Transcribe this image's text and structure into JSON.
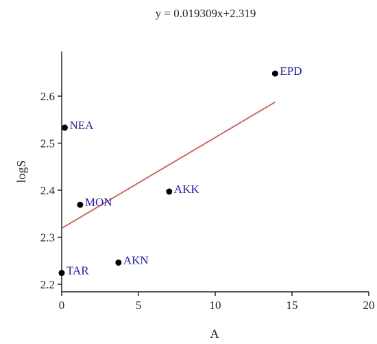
{
  "chart_data": {
    "type": "scatter",
    "equation": "y = 0.019309x+2.319",
    "xlabel": "A",
    "ylabel": "logS",
    "xlim": [
      0,
      20
    ],
    "ylim": [
      2.2,
      2.7
    ],
    "xticks": [
      "0",
      "5",
      "10",
      "15",
      "20"
    ],
    "yticks": [
      "2.2",
      "2.3",
      "2.4",
      "2.5",
      "2.6"
    ],
    "grid": false,
    "points": [
      {
        "label": "TAR",
        "x": 0.0,
        "y": 2.224
      },
      {
        "label": "NEA",
        "x": 0.2,
        "y": 2.533
      },
      {
        "label": "MON",
        "x": 1.2,
        "y": 2.369
      },
      {
        "label": "AKN",
        "x": 3.7,
        "y": 2.246
      },
      {
        "label": "AKK",
        "x": 7.0,
        "y": 2.397
      },
      {
        "label": "EPD",
        "x": 13.9,
        "y": 2.648
      }
    ],
    "trendline": {
      "slope": 0.019309,
      "intercept": 2.319,
      "x_range": [
        0,
        13.9
      ]
    },
    "colors": {
      "point": "#000000",
      "label": "#1a1acc",
      "trendline": "#e8403a",
      "axis": "#222222"
    }
  }
}
